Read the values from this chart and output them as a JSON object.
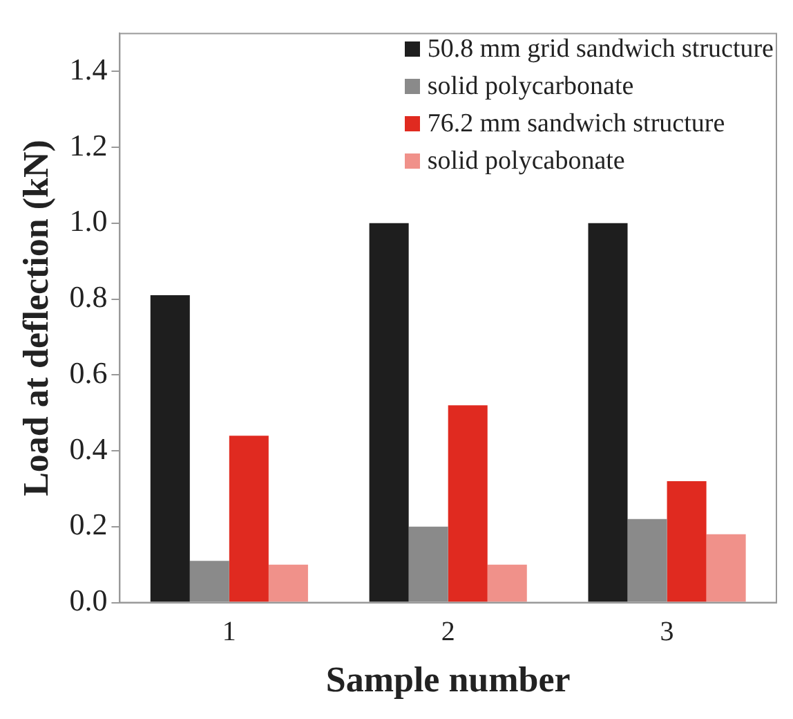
{
  "chart_data": {
    "type": "bar",
    "xlabel": "Sample number",
    "ylabel": "Load at deflection (kN)",
    "categories": [
      "1",
      "2",
      "3"
    ],
    "series": [
      {
        "name": "50.8 mm grid sandwich structure",
        "color": "#1e1e1e",
        "values": [
          0.81,
          1.0,
          1.0
        ]
      },
      {
        "name": "solid polycarbonate",
        "color": "#8a8a8a",
        "values": [
          0.11,
          0.2,
          0.22
        ]
      },
      {
        "name": "76.2 mm sandwich structure",
        "color": "#e02a20",
        "values": [
          0.44,
          0.52,
          0.32
        ]
      },
      {
        "name": "solid polycabonate",
        "color": "#f0918a",
        "values": [
          0.1,
          0.1,
          0.18
        ]
      }
    ],
    "ylim": [
      0,
      1.5
    ],
    "yticks": [
      {
        "value": 0,
        "label": "0.0"
      },
      0.2,
      0.4,
      0.6,
      0.8,
      {
        "value": 1,
        "label": "1.0"
      },
      1.2,
      1.4
    ],
    "grid": false,
    "legend": "top right"
  }
}
